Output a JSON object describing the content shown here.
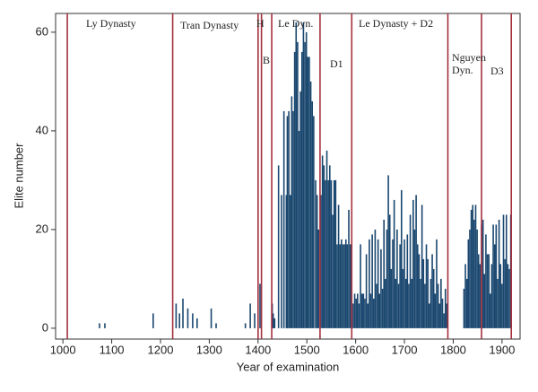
{
  "chart_data": {
    "type": "bar",
    "x_label": "Year of examination",
    "y_label": "Elite number",
    "xlim": [
      985,
      1937
    ],
    "ylim": [
      -2.2,
      63.8
    ],
    "xticks": [
      1000,
      1100,
      1200,
      1300,
      1400,
      1500,
      1600,
      1700,
      1800,
      1900
    ],
    "yticks": [
      0,
      20,
      40,
      60
    ],
    "color": "#1a476f",
    "vline_color": "#a4303f",
    "vlines": [
      1009,
      1225,
      1400,
      1407,
      1428,
      1527,
      1592,
      1789,
      1858,
      1919
    ],
    "annotations": [
      {
        "lines": [
          "Ly Dynasty"
        ]
      },
      {
        "lines": [
          "Tran Dynasty"
        ]
      },
      {
        "lines": [
          "H"
        ]
      },
      {
        "lines": [
          "B"
        ]
      },
      {
        "lines": [
          "Le Dyn."
        ]
      },
      {
        "lines": [
          "D1"
        ]
      },
      {
        "lines": [
          "Le Dynasty + D2"
        ]
      },
      {
        "lines": [
          "Nguyen",
          "Dyn."
        ]
      },
      {
        "lines": [
          "D3"
        ]
      }
    ],
    "x": [
      1075,
      1086,
      1185,
      1232,
      1239,
      1246,
      1256,
      1266,
      1275,
      1304,
      1314,
      1374,
      1384,
      1393,
      1404,
      1429,
      1431,
      1434,
      1442,
      1448,
      1453,
      1458,
      1460,
      1463,
      1466,
      1469,
      1472,
      1475,
      1478,
      1481,
      1484,
      1487,
      1490,
      1493,
      1496,
      1499,
      1502,
      1505,
      1508,
      1511,
      1514,
      1518,
      1521,
      1524,
      1529,
      1532,
      1535,
      1538,
      1541,
      1544,
      1547,
      1550,
      1553,
      1556,
      1559,
      1562,
      1565,
      1568,
      1571,
      1574,
      1577,
      1580,
      1583,
      1586,
      1589,
      1595,
      1598,
      1601,
      1604,
      1607,
      1610,
      1613,
      1616,
      1619,
      1622,
      1625,
      1628,
      1631,
      1634,
      1637,
      1640,
      1643,
      1646,
      1649,
      1652,
      1655,
      1658,
      1661,
      1664,
      1667,
      1670,
      1673,
      1676,
      1679,
      1682,
      1685,
      1688,
      1691,
      1694,
      1697,
      1700,
      1703,
      1706,
      1709,
      1712,
      1715,
      1718,
      1721,
      1724,
      1727,
      1730,
      1733,
      1736,
      1739,
      1742,
      1745,
      1748,
      1751,
      1754,
      1757,
      1760,
      1763,
      1766,
      1769,
      1772,
      1775,
      1778,
      1781,
      1784,
      1787,
      1822,
      1825,
      1828,
      1831,
      1834,
      1837,
      1840,
      1843,
      1846,
      1849,
      1852,
      1855,
      1858,
      1861,
      1864,
      1867,
      1870,
      1873,
      1876,
      1879,
      1882,
      1885,
      1888,
      1891,
      1894,
      1897,
      1900,
      1903,
      1906,
      1909,
      1912,
      1915,
      1918
    ],
    "values": [
      1,
      1,
      3,
      5,
      3,
      6,
      4,
      3,
      2,
      4,
      1,
      1,
      5,
      3,
      9,
      5,
      3,
      2,
      33,
      27,
      44,
      27,
      43,
      44,
      27,
      47,
      44,
      56,
      62,
      58,
      40,
      48,
      56,
      62,
      58,
      60,
      55,
      55,
      50,
      46,
      43,
      30,
      27,
      20,
      27,
      35,
      33,
      30,
      36,
      30,
      33,
      30,
      23,
      30,
      30,
      17,
      25,
      17,
      18,
      17,
      17,
      18,
      17,
      24,
      17,
      5,
      7,
      6,
      7,
      5,
      17,
      7,
      7,
      6,
      15,
      5,
      18,
      7,
      19,
      6,
      20,
      9,
      18,
      7,
      16,
      8,
      22,
      10,
      20,
      31,
      23,
      12,
      18,
      26,
      10,
      20,
      9,
      17,
      28,
      12,
      18,
      10,
      19,
      9,
      23,
      10,
      26,
      20,
      27,
      17,
      15,
      10,
      25,
      14,
      9,
      17,
      14,
      5,
      10,
      15,
      12,
      7,
      18,
      9,
      5,
      10,
      6,
      3,
      8,
      5,
      8,
      13,
      10,
      18,
      20,
      24,
      25,
      22,
      25,
      20,
      15,
      13,
      21,
      22,
      11,
      19,
      15,
      15,
      7,
      13,
      21,
      17,
      21,
      10,
      22,
      13,
      9,
      23,
      14,
      23,
      13,
      12,
      23
    ]
  }
}
